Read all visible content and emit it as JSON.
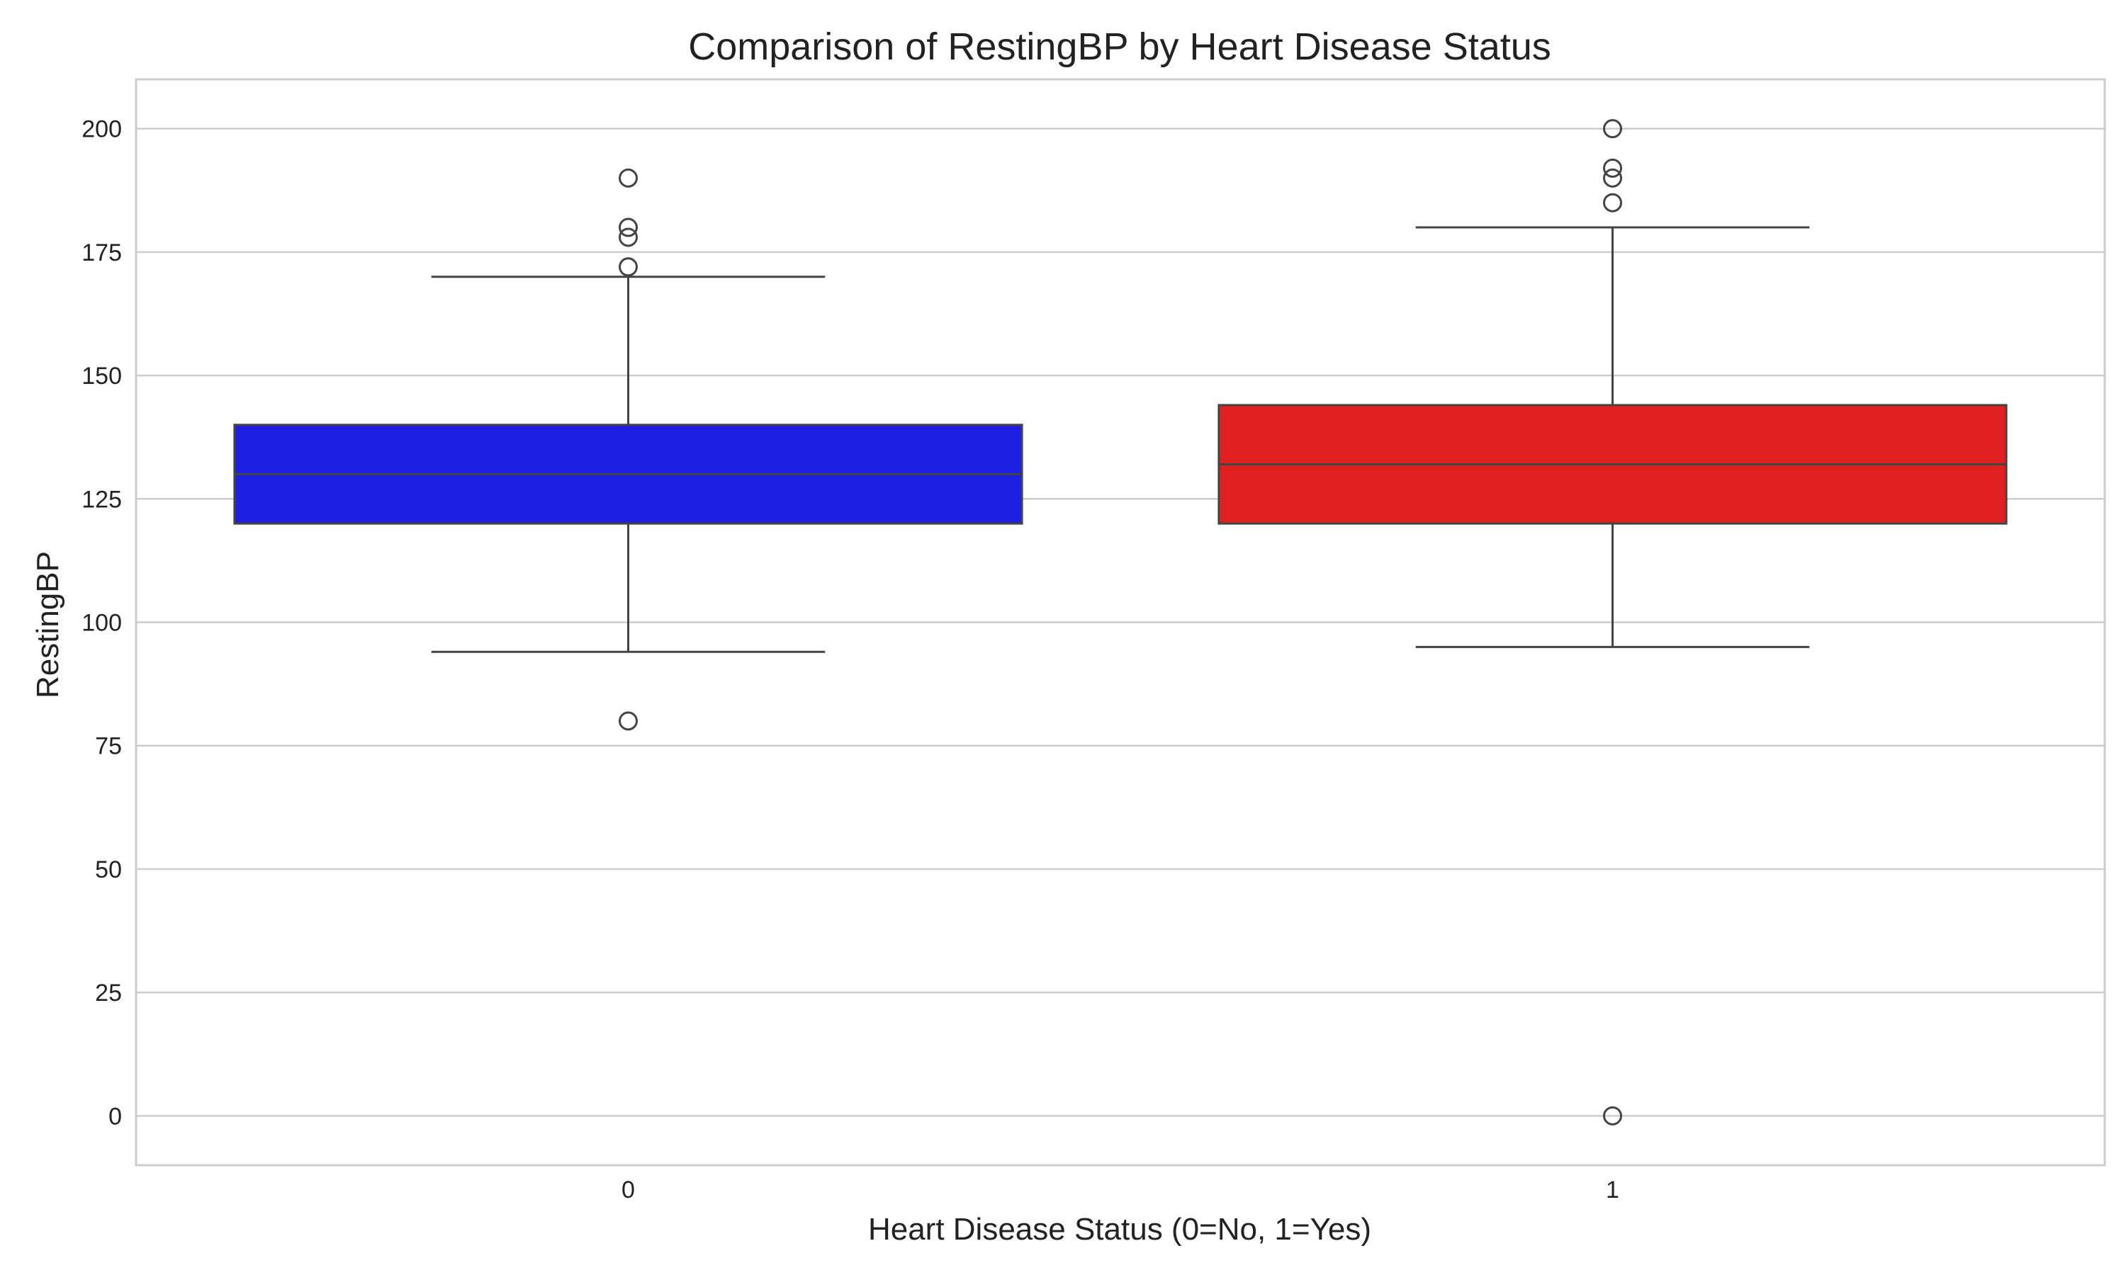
{
  "chart_data": {
    "type": "box",
    "title": "Comparison of RestingBP by Heart Disease Status",
    "xlabel": "Heart Disease Status (0=No, 1=Yes)",
    "ylabel": "RestingBP",
    "ylim": [
      -10,
      210
    ],
    "yticks": [
      0,
      25,
      50,
      75,
      100,
      125,
      150,
      175,
      200
    ],
    "grid": true,
    "categories": [
      "0",
      "1"
    ],
    "boxes": [
      {
        "category": "0",
        "color": "#1f1fe3",
        "whisker_low": 94,
        "q1": 120,
        "median": 130,
        "q3": 140,
        "whisker_high": 170,
        "fliers": [
          80,
          172,
          178,
          180,
          190
        ]
      },
      {
        "category": "1",
        "color": "#e02020",
        "whisker_low": 95,
        "q1": 120,
        "median": 132,
        "q3": 144,
        "whisker_high": 180,
        "fliers": [
          0,
          185,
          190,
          192,
          200
        ]
      }
    ]
  }
}
